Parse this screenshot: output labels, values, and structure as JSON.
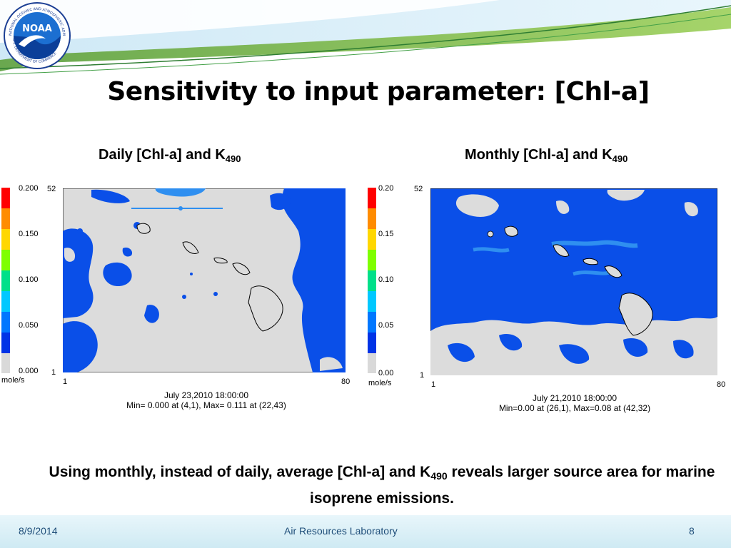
{
  "slide": {
    "title": "Sensitivity to input parameter: [Chl-a]",
    "logo": {
      "text": "NOAA",
      "ring_text_top": "NATIONAL OCEANIC AND ATMOSPHERIC ADMINISTRATION",
      "ring_text_bottom": "U.S. DEPARTMENT OF COMMERCE"
    },
    "colors": {
      "ocean_blue": "#0a4fe8",
      "light_blue": "#2f8ff0",
      "land_gray": "#dcdcdc",
      "header_green": "#8cc152",
      "footer_text": "#1f4e79"
    }
  },
  "panels": [
    {
      "title_main": "Daily [Chl-a] and K",
      "title_sub": "490",
      "colorbar_labels": [
        "0.200",
        "0.150",
        "0.100",
        "0.050",
        "0.000"
      ],
      "colorbar_colors": [
        "#ff0000",
        "#ff8c00",
        "#ffd700",
        "#7fff00",
        "#00e08a",
        "#00c8ff",
        "#0077ff",
        "#0033e6",
        "#d9d9d9"
      ],
      "unit": "mole/s",
      "y_top": "52",
      "y_bottom": "1",
      "x_left": "1",
      "x_right": "80",
      "caption_line1": "July 23,2010 18:00:00",
      "caption_line2": "Min=   0.000 at (4,1), Max=   0.111 at (22,43)"
    },
    {
      "title_main": "Monthly [Chl-a] and K",
      "title_sub": "490",
      "colorbar_labels": [
        "0.20",
        "0.15",
        "0.10",
        "0.05",
        "0.00"
      ],
      "colorbar_colors": [
        "#ff0000",
        "#ff8c00",
        "#ffd700",
        "#7fff00",
        "#00e08a",
        "#00c8ff",
        "#0077ff",
        "#0033e6",
        "#d9d9d9"
      ],
      "unit": "mole/s",
      "y_top": "52",
      "y_bottom": "1",
      "x_left": "1",
      "x_right": "80",
      "caption_line1": "July 21,2010 18:00:00",
      "caption_line2": "Min=0.00 at (26,1), Max=0.08 at (42,32)"
    }
  ],
  "summary": {
    "part1": "Using monthly, instead of daily, average [Chl-a] and K",
    "sub": "490",
    "part2": " reveals larger source area for marine isoprene emissions."
  },
  "footer": {
    "date": "8/9/2014",
    "center": "Air Resources Laboratory",
    "page": "8"
  }
}
